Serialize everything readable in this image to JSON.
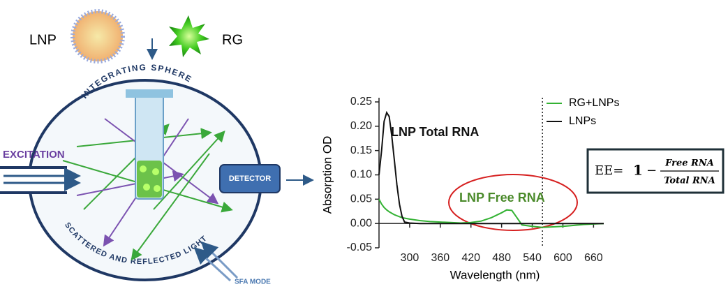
{
  "diagram": {
    "lnp_label": "LNP",
    "rg_label": "RG",
    "sphere_label": "INTEGRATING SPHERE",
    "excitation": "EXCITATION",
    "detector": "DETECTOR",
    "scatter_label": "SCATTERED AND REFLECTED LIGHT",
    "mode": "SFA MODE"
  },
  "formula": {
    "lhs": "EE=",
    "one": "1",
    "minus": "−",
    "numerator": "Free RNA",
    "denominator": "Total RNA"
  },
  "chart_data": {
    "type": "line",
    "xlabel": "Wavelength (nm)",
    "ylabel": "Absorption OD",
    "x": [
      240,
      245,
      250,
      255,
      260,
      265,
      270,
      275,
      280,
      285,
      290,
      300,
      320,
      340,
      360,
      380,
      400,
      420,
      440,
      460,
      480,
      490,
      500,
      510,
      520,
      540,
      560,
      580,
      600,
      620,
      640,
      660,
      680
    ],
    "series": [
      {
        "name": "RG+LNPs",
        "color": "#33b233",
        "values": [
          0.05,
          0.04,
          0.033,
          0.028,
          0.024,
          0.021,
          0.018,
          0.016,
          0.014,
          0.012,
          0.011,
          0.009,
          0.006,
          0.004,
          0.003,
          0.002,
          0.001,
          0.002,
          0.005,
          0.012,
          0.022,
          0.028,
          0.027,
          0.012,
          -0.003,
          -0.006,
          -0.008,
          -0.007,
          -0.006,
          -0.004,
          -0.002,
          -0.001,
          0
        ]
      },
      {
        "name": "LNPs",
        "color": "#111111",
        "values": [
          0.1,
          0.15,
          0.21,
          0.228,
          0.22,
          0.18,
          0.13,
          0.08,
          0.04,
          0.015,
          0.003,
          0.001,
          0,
          0,
          0,
          0,
          0,
          0,
          0,
          0,
          0,
          0,
          0,
          0,
          0,
          0,
          0,
          0,
          0,
          0,
          0,
          0,
          0
        ]
      }
    ],
    "annotations": [
      {
        "text": "LNP Total RNA",
        "color": "#111111"
      },
      {
        "text": "LNP Free RNA",
        "color": "#4a8a2a"
      }
    ],
    "vline": 560,
    "xlim": [
      240,
      680
    ],
    "ylim": [
      -0.05,
      0.25
    ],
    "xticks": [
      300,
      360,
      420,
      480,
      540,
      600,
      660
    ],
    "yticks": [
      -0.05,
      {
        "value": 0,
        "label": "0.00"
      },
      0.05,
      {
        "value": 0.1,
        "label": "0.10"
      },
      0.15,
      {
        "value": 0.2,
        "label": "0.20"
      },
      0.25
    ],
    "legend": "upper right"
  }
}
